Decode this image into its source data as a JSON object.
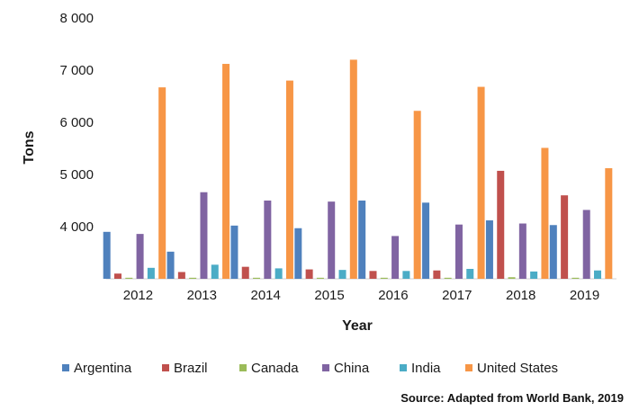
{
  "chart_data": {
    "type": "bar",
    "title": "",
    "xlabel": "Year",
    "ylabel": "Tons",
    "categories": [
      "2012",
      "2013",
      "2014",
      "2015",
      "2016",
      "2017",
      "2018",
      "2019"
    ],
    "ylim": [
      3000,
      8000
    ],
    "yticks": [
      "4 000",
      "5 000",
      "6 000",
      "7 000",
      "8 000"
    ],
    "ytick_values": [
      4000,
      5000,
      6000,
      7000,
      8000
    ],
    "grid": false,
    "legend_position": "bottom",
    "series": [
      {
        "name": "Argentina",
        "color": "#4f81bd",
        "values": [
          3900,
          3520,
          4020,
          3970,
          4500,
          4460,
          4120,
          4030
        ]
      },
      {
        "name": "Brazil",
        "color": "#c0504d",
        "values": [
          3100,
          3130,
          3230,
          3180,
          3150,
          3160,
          5070,
          4600
        ]
      },
      {
        "name": "Canada",
        "color": "#9bbb59",
        "values": [
          3020,
          3020,
          3020,
          3020,
          3020,
          3020,
          3030,
          3020
        ]
      },
      {
        "name": "China",
        "color": "#8064a2",
        "values": [
          3860,
          4660,
          4500,
          4480,
          3820,
          4040,
          4060,
          4320
        ]
      },
      {
        "name": "India",
        "color": "#4bacc6",
        "values": [
          3210,
          3270,
          3200,
          3170,
          3150,
          3190,
          3140,
          3160
        ]
      },
      {
        "name": "United States",
        "color": "#f79646",
        "values": [
          6670,
          7120,
          6800,
          7200,
          6220,
          6680,
          5510,
          5120
        ]
      }
    ]
  },
  "source_note": "Source: Adapted from World Bank, 2019"
}
